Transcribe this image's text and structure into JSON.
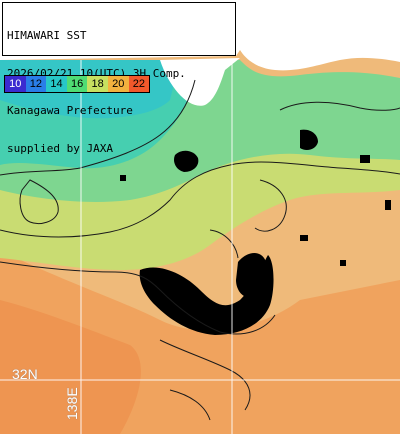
{
  "title_lines": [
    "HIMAWARI SST",
    "2026/02/21 10(UTC) 3H Comp.",
    "Kanagawa Prefecture",
    "supplied by JAXA"
  ],
  "color_scale": [
    {
      "label": "10",
      "color": "#3b2bd0"
    },
    {
      "label": "12",
      "color": "#2a7de8"
    },
    {
      "label": "14",
      "color": "#27c7c8"
    },
    {
      "label": "16",
      "color": "#4fdc74"
    },
    {
      "label": "18",
      "color": "#c7e060"
    },
    {
      "label": "20",
      "color": "#f2b23f"
    },
    {
      "label": "22",
      "color": "#f2582b"
    }
  ],
  "grid_labels": {
    "lat": "32N",
    "lon": "138E"
  },
  "colors": {
    "land": "#ffffff",
    "cloud_mask": "#000000",
    "cool_water": "#4fd8a0",
    "mid_water": "#a8dc7a",
    "warm_water": "#f0b66b",
    "hot_water": "#f09a56",
    "grid": "#ffffff"
  }
}
